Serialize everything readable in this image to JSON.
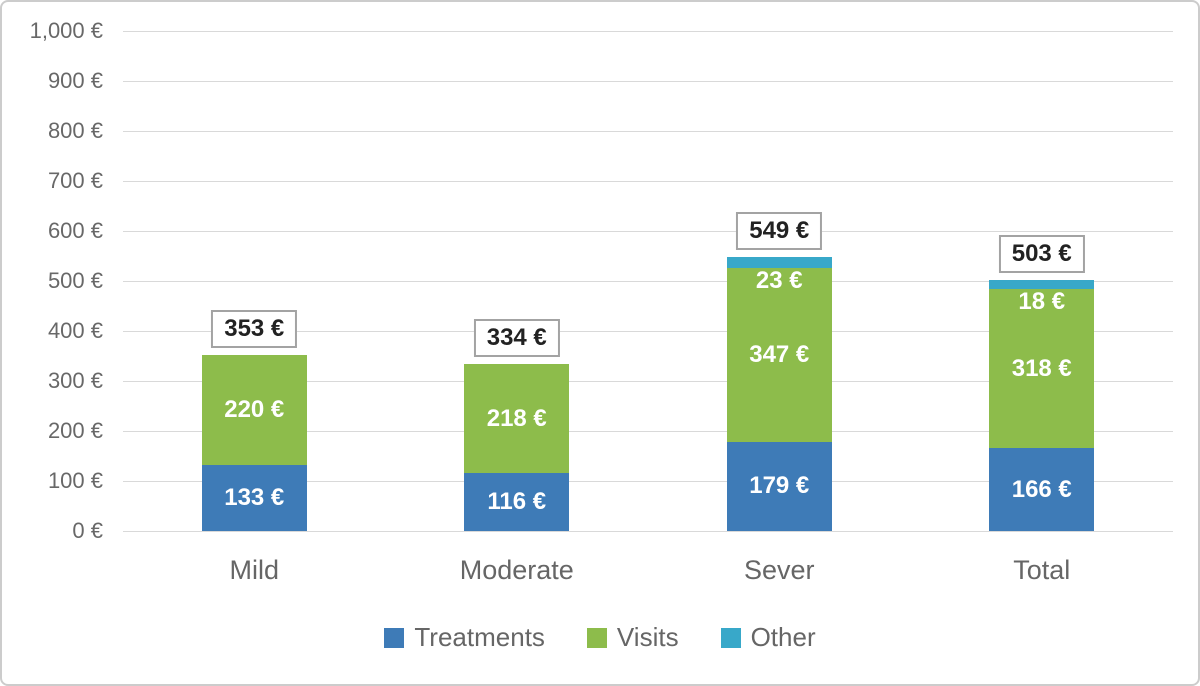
{
  "chart_data": {
    "type": "bar",
    "subtype": "stacked-column",
    "title": "",
    "xlabel": "",
    "ylabel": "",
    "categories": [
      "Mild",
      "Moderate",
      "Sever",
      "Total"
    ],
    "series": [
      {
        "name": "Treatments",
        "color": "#3E7BB7",
        "values": [
          133,
          116,
          179,
          166
        ]
      },
      {
        "name": "Visits",
        "color": "#8DBC4B",
        "values": [
          220,
          218,
          347,
          318
        ]
      },
      {
        "name": "Other",
        "color": "#38A8C9",
        "values": [
          0,
          0,
          23,
          18
        ]
      }
    ],
    "totals": [
      353,
      334,
      549,
      503
    ],
    "value_suffix": " €",
    "ylim": [
      0,
      1000
    ],
    "y_tick_step": 100,
    "y_tick_labels": [
      "1,000 €",
      "900 €",
      "800 €",
      "700 €",
      "600 €",
      "500 €",
      "400 €",
      "300 €",
      "200 €",
      "100 €",
      "0 €"
    ],
    "grid": true,
    "legend_position": "bottom",
    "legend_entries": [
      "Treatments",
      "Visits",
      "Other"
    ]
  },
  "colors": {
    "gridline": "#D9D9D9",
    "axis_text": "#686868",
    "category_text": "#666666",
    "legend_text": "#666666",
    "data_label_text": "#FFFFFF",
    "total_label_text": "#222222",
    "total_label_bg": "#FFFFFF",
    "total_label_border": "#A3A3A3",
    "frame_border": "#CCCCCC",
    "background": "#FFFFFF"
  }
}
